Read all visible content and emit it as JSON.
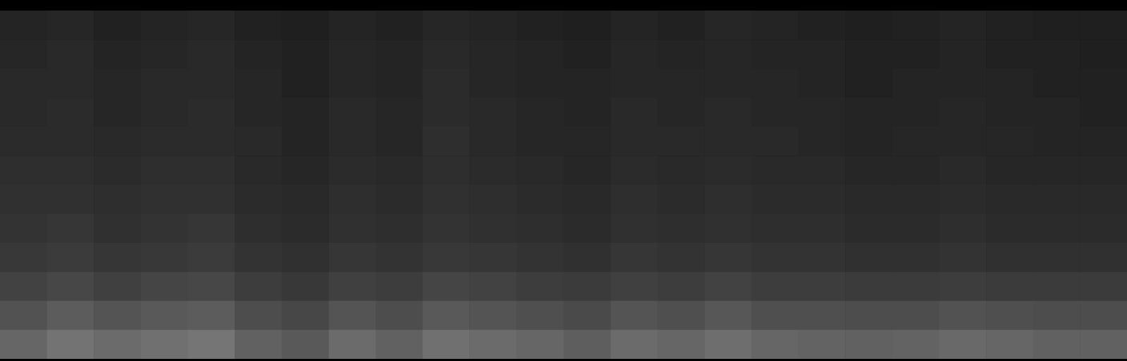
{
  "chart_data": {
    "type": "heatmap",
    "tick_labels": false,
    "color": "#ffffff",
    "color_range": [
      0,
      100
    ],
    "cells": [
      [
        14,
        15,
        13,
        14,
        15,
        13,
        12,
        14,
        13,
        15,
        14,
        13,
        12,
        14,
        13,
        15,
        14,
        13,
        12,
        13,
        14,
        13,
        12,
        12
      ],
      [
        15,
        16,
        14,
        15,
        16,
        14,
        13,
        15,
        14,
        16,
        15,
        14,
        13,
        15,
        14,
        15,
        14,
        14,
        13,
        13,
        14,
        13,
        13,
        12
      ],
      [
        16,
        16,
        15,
        16,
        16,
        15,
        13,
        15,
        14,
        17,
        15,
        14,
        14,
        15,
        15,
        15,
        15,
        14,
        13,
        14,
        14,
        14,
        13,
        13
      ],
      [
        16,
        17,
        15,
        16,
        17,
        15,
        14,
        16,
        15,
        17,
        16,
        15,
        14,
        16,
        15,
        16,
        15,
        15,
        14,
        14,
        15,
        14,
        14,
        13
      ],
      [
        17,
        17,
        16,
        17,
        17,
        16,
        14,
        16,
        15,
        18,
        16,
        15,
        15,
        16,
        16,
        16,
        16,
        15,
        14,
        15,
        15,
        15,
        14,
        14
      ],
      [
        18,
        18,
        17,
        18,
        18,
        16,
        15,
        17,
        16,
        18,
        17,
        16,
        15,
        17,
        16,
        17,
        16,
        16,
        15,
        15,
        16,
        15,
        15,
        15
      ],
      [
        19,
        19,
        18,
        19,
        19,
        17,
        16,
        18,
        17,
        19,
        18,
        17,
        16,
        18,
        17,
        18,
        17,
        17,
        16,
        16,
        17,
        16,
        16,
        16
      ],
      [
        20,
        21,
        19,
        20,
        21,
        18,
        17,
        19,
        18,
        20,
        19,
        18,
        17,
        19,
        18,
        19,
        18,
        18,
        17,
        17,
        18,
        17,
        17,
        17
      ],
      [
        22,
        23,
        21,
        22,
        23,
        20,
        19,
        21,
        20,
        22,
        21,
        20,
        19,
        21,
        20,
        21,
        20,
        20,
        19,
        19,
        20,
        19,
        19,
        19
      ],
      [
        26,
        28,
        25,
        27,
        28,
        24,
        22,
        25,
        24,
        27,
        26,
        24,
        23,
        25,
        24,
        26,
        24,
        24,
        23,
        23,
        24,
        23,
        23,
        23
      ],
      [
        32,
        36,
        33,
        35,
        36,
        30,
        28,
        33,
        30,
        35,
        33,
        31,
        29,
        33,
        31,
        34,
        31,
        31,
        30,
        30,
        32,
        31,
        30,
        30
      ],
      [
        40,
        45,
        42,
        44,
        46,
        38,
        35,
        42,
        38,
        44,
        42,
        40,
        37,
        42,
        40,
        43,
        40,
        39,
        38,
        39,
        41,
        40,
        38,
        38
      ]
    ]
  }
}
